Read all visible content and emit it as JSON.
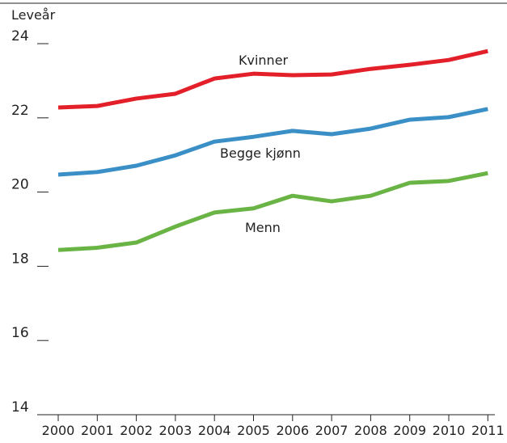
{
  "chart_data": {
    "type": "line",
    "y_label": "Leveår",
    "categories": [
      "2000",
      "2001",
      "2002",
      "2003",
      "2004",
      "2005",
      "2006",
      "2007",
      "2008",
      "2009",
      "2010",
      "2011"
    ],
    "series": [
      {
        "name": "Kvinner",
        "color": "#e3202a",
        "values": [
          22.28,
          22.32,
          22.52,
          22.65,
          23.06,
          23.19,
          23.15,
          23.17,
          23.32,
          23.43,
          23.56,
          23.8
        ]
      },
      {
        "name": "Begge kjønn",
        "color": "#3a8fc6",
        "values": [
          20.47,
          20.54,
          20.71,
          20.99,
          21.36,
          21.49,
          21.65,
          21.56,
          21.71,
          21.95,
          22.02,
          22.24
        ]
      },
      {
        "name": "Menn",
        "color": "#6ab445",
        "values": [
          18.44,
          18.5,
          18.64,
          19.07,
          19.45,
          19.56,
          19.9,
          19.75,
          19.9,
          20.25,
          20.3,
          20.51
        ]
      }
    ],
    "ylim": [
      14,
      24
    ],
    "yticks": [
      14,
      16,
      18,
      20,
      22,
      24
    ]
  }
}
